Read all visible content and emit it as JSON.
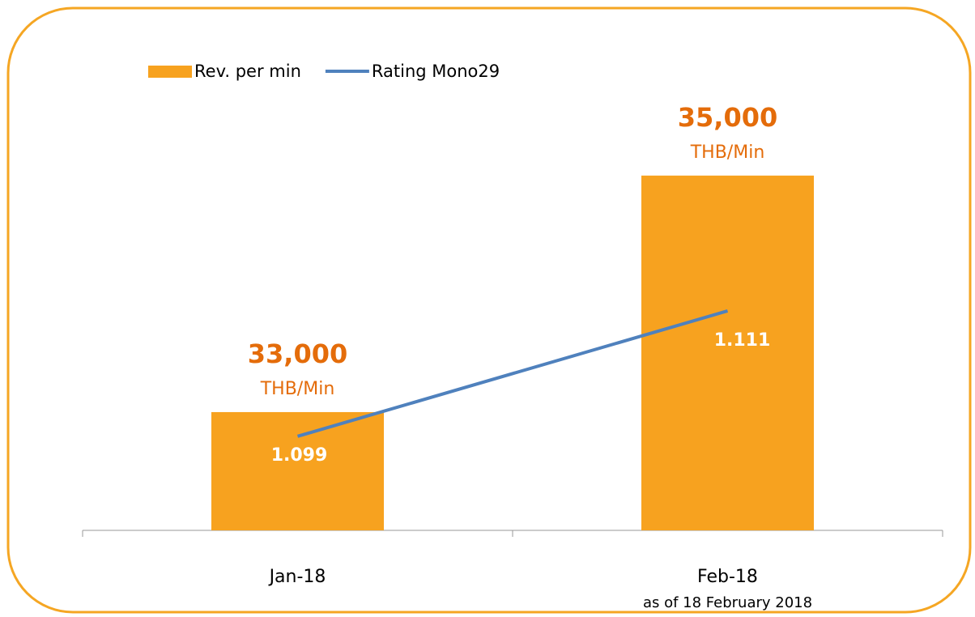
{
  "chart_data": {
    "type": "bar_line",
    "categories": [
      "Jan-18",
      "Feb-18"
    ],
    "annotation": "as of 18 February 2018",
    "unit_label": "THB/Min",
    "series": [
      {
        "name": "Rev. per min",
        "type": "bar",
        "color": "#f7a21f",
        "label_color": "#e46c0a",
        "values": [
          33000,
          35000
        ],
        "value_labels": [
          "33,000",
          "35,000"
        ]
      },
      {
        "name": "Rating Mono29",
        "type": "line",
        "axis": "y2",
        "color": "#4f81bd",
        "values": [
          1.099,
          1.111
        ]
      }
    ],
    "ylim": [
      32000,
      35800
    ],
    "y2lim": [
      1.09,
      1.133
    ],
    "legend": "top-left"
  }
}
